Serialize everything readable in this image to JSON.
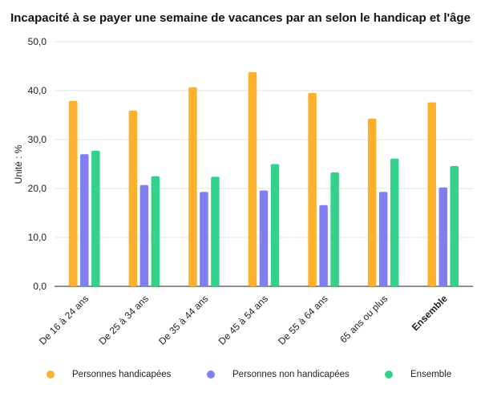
{
  "chart_data": {
    "type": "bar",
    "title": "Incapacité à se payer une semaine de vacances par an selon le handicap et l'âge",
    "ylabel": "Unité : %",
    "xlabel": "",
    "ylim": [
      0,
      50
    ],
    "yticks": [
      "0,0",
      "10,0",
      "20,0",
      "30,0",
      "40,0",
      "50,0"
    ],
    "grid": true,
    "legend_position": "bottom",
    "categories": [
      "De 16 à 24 ans",
      "De 25 à 34 ans",
      "De 35 à 44 ans",
      "De 45 à 54 ans",
      "De 55 à 64 ans",
      "65 ans ou plus",
      "Ensemble"
    ],
    "bold_categories": [
      "Ensemble"
    ],
    "series": [
      {
        "name": "Personnes handicapées",
        "color": "#FBB12E",
        "values": [
          37.9,
          35.9,
          40.7,
          43.8,
          39.5,
          34.3,
          37.6
        ]
      },
      {
        "name": "Personnes non handicapées",
        "color": "#7F7FF0",
        "values": [
          27.0,
          20.7,
          19.3,
          19.6,
          16.6,
          19.3,
          20.2
        ]
      },
      {
        "name": "Ensemble",
        "color": "#33D18C",
        "values": [
          27.7,
          22.5,
          22.4,
          25.0,
          23.3,
          26.1,
          24.6
        ]
      }
    ]
  }
}
